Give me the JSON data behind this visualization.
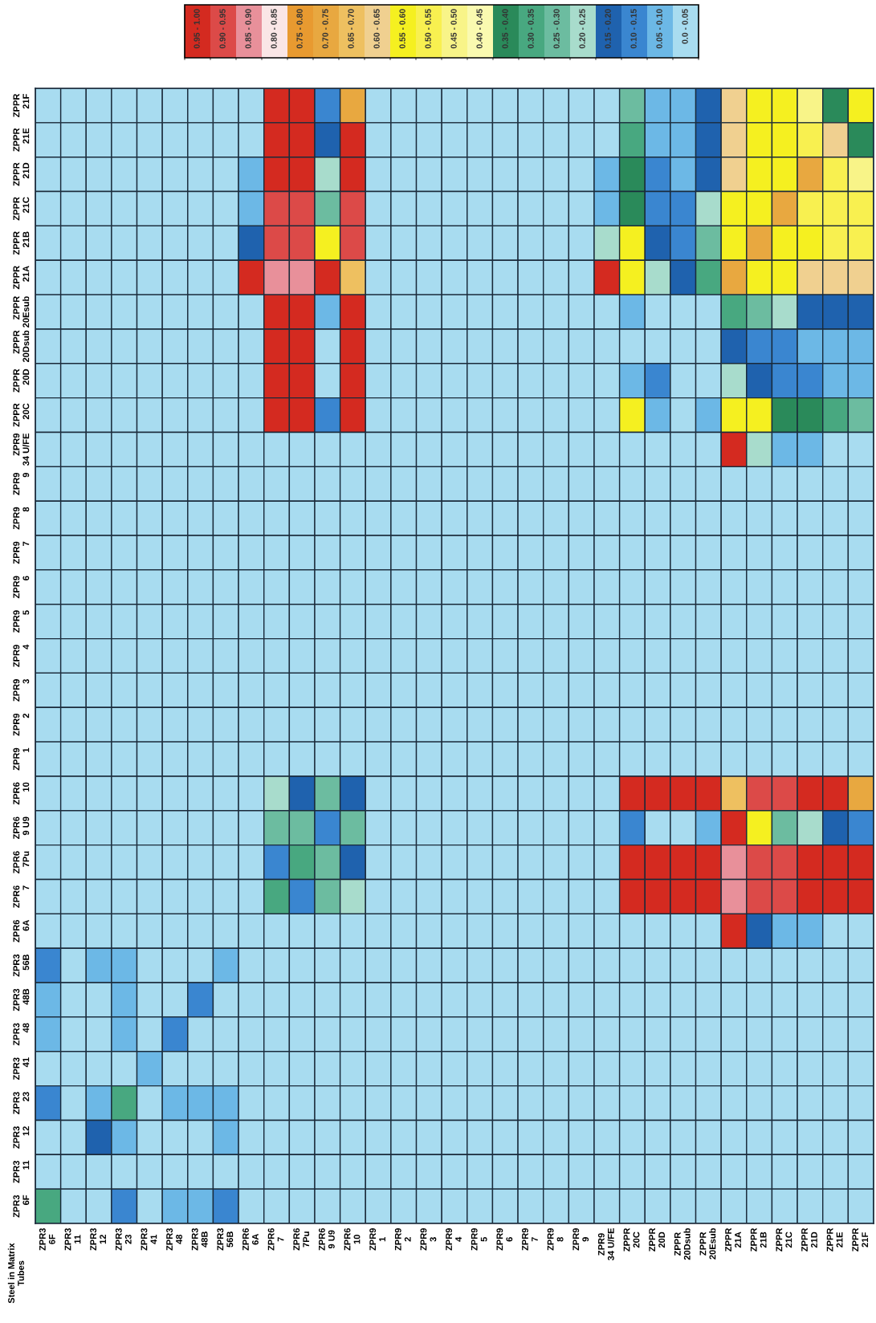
{
  "chart_data": {
    "type": "heatmap",
    "annotations": [
      "Steel in Matrix\nTubes"
    ],
    "categories": [
      "ZPR3\n6F",
      "ZPR3\n11",
      "ZPR3\n12",
      "ZPR3\n23",
      "ZPR3\n41",
      "ZPR3\n48",
      "ZPR3\n48B",
      "ZPR3\n56B",
      "ZPR6\n6A",
      "ZPR6\n7",
      "ZPR6\n7Pu",
      "ZPR6\n9 U9",
      "ZPR6\n10",
      "ZPR9\n1",
      "ZPR9\n2",
      "ZPR9\n3",
      "ZPR9\n4",
      "ZPR9\n5",
      "ZPR9\n6",
      "ZPR9\n7",
      "ZPR9\n8",
      "ZPR9\n9",
      "ZPR9\n34 U/FE",
      "ZPPR\n20C",
      "ZPPR\n20D",
      "ZPPR\n20Dsub",
      "ZPPR\n20Esub",
      "ZPPR\n21A",
      "ZPPR\n21B",
      "ZPPR\n21C",
      "ZPPR\n21D",
      "ZPPR\n21E",
      "ZPPR\n21F"
    ],
    "y_categories": [
      "ZPPR\n21F",
      "ZPPR\n21E",
      "ZPPR\n21D",
      "ZPPR\n21C",
      "ZPPR\n21B",
      "ZPPR\n21A",
      "ZPPR\n20Esub",
      "ZPPR\n20Dsub",
      "ZPPR\n20D",
      "ZPPR\n20C",
      "ZPR9\n34 U/FE",
      "ZPR9\n9",
      "ZPR9\n8",
      "ZPR9\n7",
      "ZPR9\n6",
      "ZPR9\n5",
      "ZPR9\n4",
      "ZPR9\n3",
      "ZPR9\n2",
      "ZPR9\n1",
      "ZPR6\n10",
      "ZPR6\n9 U9",
      "ZPR6\n7Pu",
      "ZPR6\n7",
      "ZPR6\n6A",
      "ZPR3\n56B",
      "ZPR3\n48B",
      "ZPR3\n48",
      "ZPR3\n41",
      "ZPR3\n23",
      "ZPR3\n12",
      "ZPR3\n11",
      "ZPR3\n6F"
    ],
    "cells": [
      [
        0.025,
        0.025,
        0.025,
        0.025,
        0.025,
        0.025,
        0.025,
        0.025,
        0.025,
        0.975,
        0.975,
        0.125,
        0.725,
        0.025,
        0.025,
        0.025,
        0.025,
        0.025,
        0.025,
        0.025,
        0.025,
        0.025,
        0.025,
        0.275,
        0.075,
        0.075,
        0.175,
        0.625,
        0.575,
        0.575,
        0.475,
        0.375,
        0.575
      ],
      [
        0.025,
        0.025,
        0.025,
        0.025,
        0.025,
        0.025,
        0.025,
        0.025,
        0.025,
        0.975,
        0.975,
        0.175,
        0.975,
        0.025,
        0.025,
        0.025,
        0.025,
        0.025,
        0.025,
        0.025,
        0.025,
        0.025,
        0.025,
        0.325,
        0.075,
        0.075,
        0.175,
        0.625,
        0.575,
        0.575,
        0.525,
        0.625,
        0.375
      ],
      [
        0.025,
        0.025,
        0.025,
        0.025,
        0.025,
        0.025,
        0.025,
        0.025,
        0.075,
        0.975,
        0.975,
        0.225,
        0.975,
        0.025,
        0.025,
        0.025,
        0.025,
        0.025,
        0.025,
        0.025,
        0.025,
        0.025,
        0.075,
        0.375,
        0.125,
        0.075,
        0.175,
        0.625,
        0.575,
        0.575,
        0.725,
        0.525,
        0.475
      ],
      [
        0.025,
        0.025,
        0.025,
        0.025,
        0.025,
        0.025,
        0.025,
        0.025,
        0.075,
        0.925,
        0.925,
        0.275,
        0.925,
        0.025,
        0.025,
        0.025,
        0.025,
        0.025,
        0.025,
        0.025,
        0.025,
        0.025,
        0.075,
        0.375,
        0.125,
        0.125,
        0.225,
        0.575,
        0.575,
        0.725,
        0.525,
        0.525,
        0.525
      ],
      [
        0.025,
        0.025,
        0.025,
        0.025,
        0.025,
        0.025,
        0.025,
        0.025,
        0.175,
        0.925,
        0.925,
        0.575,
        0.925,
        0.025,
        0.025,
        0.025,
        0.025,
        0.025,
        0.025,
        0.025,
        0.025,
        0.025,
        0.225,
        0.575,
        0.175,
        0.125,
        0.275,
        0.575,
        0.725,
        0.575,
        0.575,
        0.525,
        0.525
      ],
      [
        0.025,
        0.025,
        0.025,
        0.025,
        0.025,
        0.025,
        0.025,
        0.025,
        0.975,
        0.875,
        0.875,
        0.975,
        0.675,
        0.025,
        0.025,
        0.025,
        0.025,
        0.025,
        0.025,
        0.025,
        0.025,
        0.025,
        0.975,
        0.575,
        0.225,
        0.175,
        0.325,
        0.725,
        0.575,
        0.575,
        0.625,
        0.625,
        0.625
      ],
      [
        0.025,
        0.025,
        0.025,
        0.025,
        0.025,
        0.025,
        0.025,
        0.025,
        0.025,
        0.975,
        0.975,
        0.075,
        0.975,
        0.025,
        0.025,
        0.025,
        0.025,
        0.025,
        0.025,
        0.025,
        0.025,
        0.025,
        0.025,
        0.075,
        0.025,
        0.025,
        0.025,
        0.325,
        0.275,
        0.225,
        0.175,
        0.175,
        0.175
      ],
      [
        0.025,
        0.025,
        0.025,
        0.025,
        0.025,
        0.025,
        0.025,
        0.025,
        0.025,
        0.975,
        0.975,
        0.025,
        0.975,
        0.025,
        0.025,
        0.025,
        0.025,
        0.025,
        0.025,
        0.025,
        0.025,
        0.025,
        0.025,
        0.025,
        0.025,
        0.025,
        0.025,
        0.175,
        0.125,
        0.125,
        0.075,
        0.075,
        0.075
      ],
      [
        0.025,
        0.025,
        0.025,
        0.025,
        0.025,
        0.025,
        0.025,
        0.025,
        0.025,
        0.975,
        0.975,
        0.025,
        0.975,
        0.025,
        0.025,
        0.025,
        0.025,
        0.025,
        0.025,
        0.025,
        0.025,
        0.025,
        0.025,
        0.075,
        0.125,
        0.025,
        0.025,
        0.225,
        0.175,
        0.125,
        0.125,
        0.075,
        0.075
      ],
      [
        0.025,
        0.025,
        0.025,
        0.025,
        0.025,
        0.025,
        0.025,
        0.025,
        0.025,
        0.975,
        0.975,
        0.125,
        0.975,
        0.025,
        0.025,
        0.025,
        0.025,
        0.025,
        0.025,
        0.025,
        0.025,
        0.025,
        0.025,
        0.575,
        0.075,
        0.025,
        0.075,
        0.575,
        0.575,
        0.375,
        0.375,
        0.325,
        0.275
      ],
      [
        0.025,
        0.025,
        0.025,
        0.025,
        0.025,
        0.025,
        0.025,
        0.025,
        0.025,
        0.025,
        0.025,
        0.025,
        0.025,
        0.025,
        0.025,
        0.025,
        0.025,
        0.025,
        0.025,
        0.025,
        0.025,
        0.025,
        0.025,
        0.025,
        0.025,
        0.025,
        0.025,
        0.975,
        0.225,
        0.075,
        0.075,
        0.025,
        0.025
      ],
      [
        0.025,
        0.025,
        0.025,
        0.025,
        0.025,
        0.025,
        0.025,
        0.025,
        0.025,
        0.025,
        0.025,
        0.025,
        0.025,
        0.025,
        0.025,
        0.025,
        0.025,
        0.025,
        0.025,
        0.025,
        0.025,
        0.025,
        0.025,
        0.025,
        0.025,
        0.025,
        0.025,
        0.025,
        0.025,
        0.025,
        0.025,
        0.025,
        0.025
      ],
      [
        0.025,
        0.025,
        0.025,
        0.025,
        0.025,
        0.025,
        0.025,
        0.025,
        0.025,
        0.025,
        0.025,
        0.025,
        0.025,
        0.025,
        0.025,
        0.025,
        0.025,
        0.025,
        0.025,
        0.025,
        0.025,
        0.025,
        0.025,
        0.025,
        0.025,
        0.025,
        0.025,
        0.025,
        0.025,
        0.025,
        0.025,
        0.025,
        0.025
      ],
      [
        0.025,
        0.025,
        0.025,
        0.025,
        0.025,
        0.025,
        0.025,
        0.025,
        0.025,
        0.025,
        0.025,
        0.025,
        0.025,
        0.025,
        0.025,
        0.025,
        0.025,
        0.025,
        0.025,
        0.025,
        0.025,
        0.025,
        0.025,
        0.025,
        0.025,
        0.025,
        0.025,
        0.025,
        0.025,
        0.025,
        0.025,
        0.025,
        0.025
      ],
      [
        0.025,
        0.025,
        0.025,
        0.025,
        0.025,
        0.025,
        0.025,
        0.025,
        0.025,
        0.025,
        0.025,
        0.025,
        0.025,
        0.025,
        0.025,
        0.025,
        0.025,
        0.025,
        0.025,
        0.025,
        0.025,
        0.025,
        0.025,
        0.025,
        0.025,
        0.025,
        0.025,
        0.025,
        0.025,
        0.025,
        0.025,
        0.025,
        0.025
      ],
      [
        0.025,
        0.025,
        0.025,
        0.025,
        0.025,
        0.025,
        0.025,
        0.025,
        0.025,
        0.025,
        0.025,
        0.025,
        0.025,
        0.025,
        0.025,
        0.025,
        0.025,
        0.025,
        0.025,
        0.025,
        0.025,
        0.025,
        0.025,
        0.025,
        0.025,
        0.025,
        0.025,
        0.025,
        0.025,
        0.025,
        0.025,
        0.025,
        0.025
      ],
      [
        0.025,
        0.025,
        0.025,
        0.025,
        0.025,
        0.025,
        0.025,
        0.025,
        0.025,
        0.025,
        0.025,
        0.025,
        0.025,
        0.025,
        0.025,
        0.025,
        0.025,
        0.025,
        0.025,
        0.025,
        0.025,
        0.025,
        0.025,
        0.025,
        0.025,
        0.025,
        0.025,
        0.025,
        0.025,
        0.025,
        0.025,
        0.025,
        0.025
      ],
      [
        0.025,
        0.025,
        0.025,
        0.025,
        0.025,
        0.025,
        0.025,
        0.025,
        0.025,
        0.025,
        0.025,
        0.025,
        0.025,
        0.025,
        0.025,
        0.025,
        0.025,
        0.025,
        0.025,
        0.025,
        0.025,
        0.025,
        0.025,
        0.025,
        0.025,
        0.025,
        0.025,
        0.025,
        0.025,
        0.025,
        0.025,
        0.025,
        0.025
      ],
      [
        0.025,
        0.025,
        0.025,
        0.025,
        0.025,
        0.025,
        0.025,
        0.025,
        0.025,
        0.025,
        0.025,
        0.025,
        0.025,
        0.025,
        0.025,
        0.025,
        0.025,
        0.025,
        0.025,
        0.025,
        0.025,
        0.025,
        0.025,
        0.025,
        0.025,
        0.025,
        0.025,
        0.025,
        0.025,
        0.025,
        0.025,
        0.025,
        0.025
      ],
      [
        0.025,
        0.025,
        0.025,
        0.025,
        0.025,
        0.025,
        0.025,
        0.025,
        0.025,
        0.025,
        0.025,
        0.025,
        0.025,
        0.025,
        0.025,
        0.025,
        0.025,
        0.025,
        0.025,
        0.025,
        0.025,
        0.025,
        0.025,
        0.025,
        0.025,
        0.025,
        0.025,
        0.025,
        0.025,
        0.025,
        0.025,
        0.025,
        0.025
      ],
      [
        0.025,
        0.025,
        0.025,
        0.025,
        0.025,
        0.025,
        0.025,
        0.025,
        0.025,
        0.225,
        0.175,
        0.275,
        0.175,
        0.025,
        0.025,
        0.025,
        0.025,
        0.025,
        0.025,
        0.025,
        0.025,
        0.025,
        0.025,
        0.975,
        0.975,
        0.975,
        0.975,
        0.675,
        0.925,
        0.925,
        0.975,
        0.975,
        0.725
      ],
      [
        0.025,
        0.025,
        0.025,
        0.025,
        0.025,
        0.025,
        0.025,
        0.025,
        0.025,
        0.275,
        0.275,
        0.125,
        0.275,
        0.025,
        0.025,
        0.025,
        0.025,
        0.025,
        0.025,
        0.025,
        0.025,
        0.025,
        0.025,
        0.125,
        0.025,
        0.025,
        0.075,
        0.975,
        0.575,
        0.275,
        0.225,
        0.175,
        0.125
      ],
      [
        0.025,
        0.025,
        0.025,
        0.025,
        0.025,
        0.025,
        0.025,
        0.025,
        0.025,
        0.125,
        0.325,
        0.275,
        0.175,
        0.025,
        0.025,
        0.025,
        0.025,
        0.025,
        0.025,
        0.025,
        0.025,
        0.025,
        0.025,
        0.975,
        0.975,
        0.975,
        0.975,
        0.875,
        0.925,
        0.925,
        0.975,
        0.975,
        0.975
      ],
      [
        0.025,
        0.025,
        0.025,
        0.025,
        0.025,
        0.025,
        0.025,
        0.025,
        0.025,
        0.325,
        0.125,
        0.275,
        0.225,
        0.025,
        0.025,
        0.025,
        0.025,
        0.025,
        0.025,
        0.025,
        0.025,
        0.025,
        0.025,
        0.975,
        0.975,
        0.975,
        0.975,
        0.875,
        0.925,
        0.925,
        0.975,
        0.975,
        0.975
      ],
      [
        0.025,
        0.025,
        0.025,
        0.025,
        0.025,
        0.025,
        0.025,
        0.025,
        0.025,
        0.025,
        0.025,
        0.025,
        0.025,
        0.025,
        0.025,
        0.025,
        0.025,
        0.025,
        0.025,
        0.025,
        0.025,
        0.025,
        0.025,
        0.025,
        0.025,
        0.025,
        0.025,
        0.975,
        0.175,
        0.075,
        0.075,
        0.025,
        0.025
      ],
      [
        0.125,
        0.025,
        0.075,
        0.075,
        0.025,
        0.025,
        0.025,
        0.075,
        0.025,
        0.025,
        0.025,
        0.025,
        0.025,
        0.025,
        0.025,
        0.025,
        0.025,
        0.025,
        0.025,
        0.025,
        0.025,
        0.025,
        0.025,
        0.025,
        0.025,
        0.025,
        0.025,
        0.025,
        0.025,
        0.025,
        0.025,
        0.025,
        0.025
      ],
      [
        0.075,
        0.025,
        0.025,
        0.075,
        0.025,
        0.025,
        0.125,
        0.025,
        0.025,
        0.025,
        0.025,
        0.025,
        0.025,
        0.025,
        0.025,
        0.025,
        0.025,
        0.025,
        0.025,
        0.025,
        0.025,
        0.025,
        0.025,
        0.025,
        0.025,
        0.025,
        0.025,
        0.025,
        0.025,
        0.025,
        0.025,
        0.025,
        0.025
      ],
      [
        0.075,
        0.025,
        0.025,
        0.075,
        0.025,
        0.125,
        0.025,
        0.025,
        0.025,
        0.025,
        0.025,
        0.025,
        0.025,
        0.025,
        0.025,
        0.025,
        0.025,
        0.025,
        0.025,
        0.025,
        0.025,
        0.025,
        0.025,
        0.025,
        0.025,
        0.025,
        0.025,
        0.025,
        0.025,
        0.025,
        0.025,
        0.025,
        0.025
      ],
      [
        0.025,
        0.025,
        0.025,
        0.025,
        0.075,
        0.025,
        0.025,
        0.025,
        0.025,
        0.025,
        0.025,
        0.025,
        0.025,
        0.025,
        0.025,
        0.025,
        0.025,
        0.025,
        0.025,
        0.025,
        0.025,
        0.025,
        0.025,
        0.025,
        0.025,
        0.025,
        0.025,
        0.025,
        0.025,
        0.025,
        0.025,
        0.025,
        0.025
      ],
      [
        0.125,
        0.025,
        0.075,
        0.325,
        0.025,
        0.075,
        0.075,
        0.075,
        0.025,
        0.025,
        0.025,
        0.025,
        0.025,
        0.025,
        0.025,
        0.025,
        0.025,
        0.025,
        0.025,
        0.025,
        0.025,
        0.025,
        0.025,
        0.025,
        0.025,
        0.025,
        0.025,
        0.025,
        0.025,
        0.025,
        0.025,
        0.025,
        0.025
      ],
      [
        0.025,
        0.025,
        0.175,
        0.075,
        0.025,
        0.025,
        0.025,
        0.075,
        0.025,
        0.025,
        0.025,
        0.025,
        0.025,
        0.025,
        0.025,
        0.025,
        0.025,
        0.025,
        0.025,
        0.025,
        0.025,
        0.025,
        0.025,
        0.025,
        0.025,
        0.025,
        0.025,
        0.025,
        0.025,
        0.025,
        0.025,
        0.025,
        0.025
      ],
      [
        0.025,
        0.025,
        0.025,
        0.025,
        0.025,
        0.025,
        0.025,
        0.025,
        0.025,
        0.025,
        0.025,
        0.025,
        0.025,
        0.025,
        0.025,
        0.025,
        0.025,
        0.025,
        0.025,
        0.025,
        0.025,
        0.025,
        0.025,
        0.025,
        0.025,
        0.025,
        0.025,
        0.025,
        0.025,
        0.025,
        0.025,
        0.025,
        0.025
      ],
      [
        0.325,
        0.025,
        0.025,
        0.125,
        0.025,
        0.075,
        0.075,
        0.125,
        0.025,
        0.025,
        0.025,
        0.025,
        0.025,
        0.025,
        0.025,
        0.025,
        0.025,
        0.025,
        0.025,
        0.025,
        0.025,
        0.025,
        0.025,
        0.025,
        0.025,
        0.025,
        0.025,
        0.025,
        0.025,
        0.025,
        0.025,
        0.025,
        0.025
      ]
    ],
    "clim": [
      1.0,
      0.0
    ],
    "cticks": [
      {
        "value": 0.025,
        "label": "0.0 - 0.05"
      },
      {
        "value": 0.075,
        "label": "0.05 - 0.10"
      },
      {
        "value": 0.125,
        "label": "0.10 - 0.15"
      },
      {
        "value": 0.175,
        "label": "0.15 - 0.20"
      },
      {
        "value": 0.225,
        "label": "0.20 - 0.25"
      },
      {
        "value": 0.275,
        "label": "0.25 - 0.30"
      },
      {
        "value": 0.325,
        "label": "0.30 - 0.35"
      },
      {
        "value": 0.375,
        "label": "0.35 - 0.40"
      },
      {
        "value": 0.425,
        "label": "0.40 - 0.45"
      },
      {
        "value": 0.475,
        "label": "0.45 - 0.50"
      },
      {
        "value": 0.525,
        "label": "0.50 - 0.55"
      },
      {
        "value": 0.575,
        "label": "0.55 - 0.60"
      },
      {
        "value": 0.625,
        "label": "0.60 - 0.65"
      },
      {
        "value": 0.675,
        "label": "0.65 - 0.70"
      },
      {
        "value": 0.725,
        "label": "0.70 - 0.75"
      },
      {
        "value": 0.775,
        "label": "0.75 - 0.80"
      },
      {
        "value": 0.825,
        "label": "0.80 - 0.85"
      },
      {
        "value": 0.875,
        "label": "0.85 - 0.90"
      },
      {
        "value": 0.925,
        "label": "0.90 - 0.95"
      },
      {
        "value": 0.975,
        "label": "0.95 - 1.00"
      }
    ],
    "colors": [
      "#a8dcf0",
      "#6cb8e6",
      "#3a86d0",
      "#1f62ae",
      "#a8dccc",
      "#6cbca0",
      "#48a880",
      "#2a8a5a",
      "#fafab0",
      "#f8f488",
      "#f8f050",
      "#f5f020",
      "#f0d090",
      "#eec060",
      "#e8a840",
      "#e89a30",
      "#fae6e6",
      "#e8909a",
      "#dc4a48",
      "#d42a20"
    ]
  }
}
